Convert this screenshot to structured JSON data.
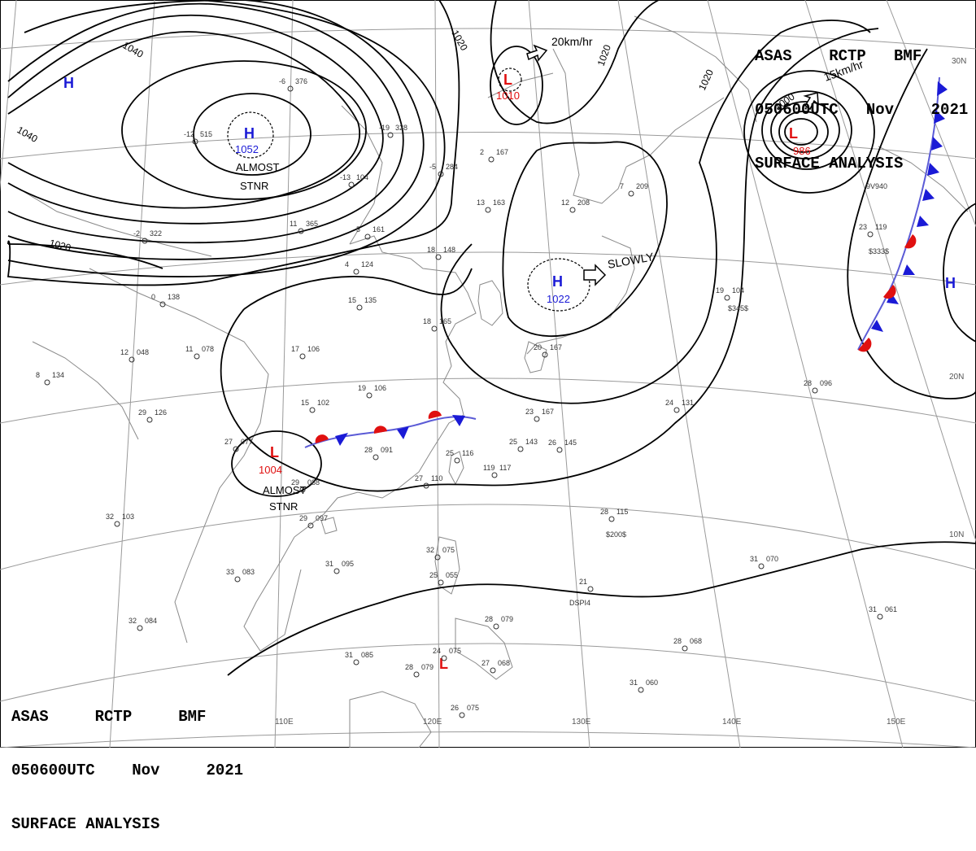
{
  "header": {
    "line1": "ASAS    RCTP   BMF",
    "line2": "050600UTC   Nov    2021",
    "line3": "SURFACE ANALYSIS"
  },
  "header_bottom": {
    "line1": "ASAS     RCTP     BMF",
    "line2": "050600UTC    Nov     2021",
    "line3": "SURFACE ANALYSIS"
  },
  "pressure_centers": [
    {
      "type": "H",
      "pressure": "1052",
      "note1": "ALMOST",
      "note2": "STNR"
    },
    {
      "type": "H",
      "pressure": ""
    },
    {
      "type": "L",
      "pressure": "1010"
    },
    {
      "type": "L",
      "pressure": "986"
    },
    {
      "type": "H",
      "pressure": "1022"
    },
    {
      "type": "L",
      "pressure": "1004",
      "note1": "ALMOST",
      "note2": "STNR"
    },
    {
      "type": "H",
      "pressure": ""
    },
    {
      "type": "L",
      "pressure": ""
    }
  ],
  "motion_labels": {
    "low_north": "20km/hr",
    "low_ne": "15km/hr",
    "high_japan": "SLOWLY"
  },
  "isobar_labels": [
    "1040",
    "1040",
    "1020",
    "1020",
    "1020",
    "1020",
    "1000"
  ],
  "longitude_labels": [
    "110E",
    "120E",
    "130E",
    "140E",
    "150E"
  ],
  "latitude_labels": [
    "20N",
    "10N",
    "30N"
  ],
  "stations": [
    {
      "t": "-12",
      "p": "515"
    },
    {
      "t": "-6",
      "p": "376"
    },
    {
      "t": "-13",
      "p": "104"
    },
    {
      "t": "-19",
      "p": "328"
    },
    {
      "t": "-5",
      "p": "284"
    },
    {
      "t": "2",
      "p": "167"
    },
    {
      "t": "13",
      "p": "163"
    },
    {
      "t": "12",
      "p": "208"
    },
    {
      "t": "7",
      "p": "209"
    },
    {
      "t": "-2",
      "p": "322"
    },
    {
      "t": "11",
      "p": "365"
    },
    {
      "t": "5",
      "p": "161"
    },
    {
      "t": "4",
      "p": "124"
    },
    {
      "t": "18",
      "p": "148"
    },
    {
      "t": "15",
      "p": "135"
    },
    {
      "t": "0",
      "p": "138"
    },
    {
      "t": "12",
      "p": "048"
    },
    {
      "t": "11",
      "p": "078"
    },
    {
      "t": "17",
      "p": "106"
    },
    {
      "t": "18",
      "p": "165"
    },
    {
      "t": "8",
      "p": "134"
    },
    {
      "t": "19",
      "p": "104"
    },
    {
      "t": "19",
      "p": "106"
    },
    {
      "t": "15",
      "p": "102"
    },
    {
      "t": "29",
      "p": "126"
    },
    {
      "t": "27",
      "p": "077"
    },
    {
      "t": "28",
      "p": "091"
    },
    {
      "t": "25",
      "p": "116"
    },
    {
      "t": "25",
      "p": "143"
    },
    {
      "t": "26",
      "p": "145"
    },
    {
      "t": "23",
      "p": "167"
    },
    {
      "t": "24",
      "p": "131"
    },
    {
      "t": "28",
      "p": "096"
    },
    {
      "t": "23",
      "p": "119"
    },
    {
      "t": "29",
      "p": "088"
    },
    {
      "t": "27",
      "p": "110"
    },
    {
      "t": "119",
      "p": "117"
    },
    {
      "t": "32",
      "p": "103"
    },
    {
      "t": "29",
      "p": "097"
    },
    {
      "t": "28",
      "p": "115"
    },
    {
      "t": "33",
      "p": "083"
    },
    {
      "t": "31",
      "p": "095"
    },
    {
      "t": "32",
      "p": "075"
    },
    {
      "t": "25",
      "p": "055"
    },
    {
      "t": "21",
      "p": ""
    },
    {
      "t": "31",
      "p": "070"
    },
    {
      "t": "32",
      "p": "084"
    },
    {
      "t": "31",
      "p": "061"
    },
    {
      "t": "28",
      "p": "068"
    },
    {
      "t": "31",
      "p": "085"
    },
    {
      "t": "28",
      "p": "079"
    },
    {
      "t": "24",
      "p": "075"
    },
    {
      "t": "31",
      "p": "060"
    },
    {
      "t": "26",
      "p": "075"
    },
    {
      "t": "28",
      "p": "079"
    },
    {
      "t": "27",
      "p": "068"
    },
    {
      "t": "20",
      "p": "167"
    }
  ],
  "ship_labels": [
    "9V940",
    "$200$",
    "$345$",
    "$333$",
    "DSPI4"
  ],
  "colors": {
    "high": "#1a1ad6",
    "low": "#e01010",
    "isobar": "#000000",
    "coast": "#8a8a8a",
    "cold_front": "#1a1ad6",
    "warm_front": "#e01010"
  }
}
